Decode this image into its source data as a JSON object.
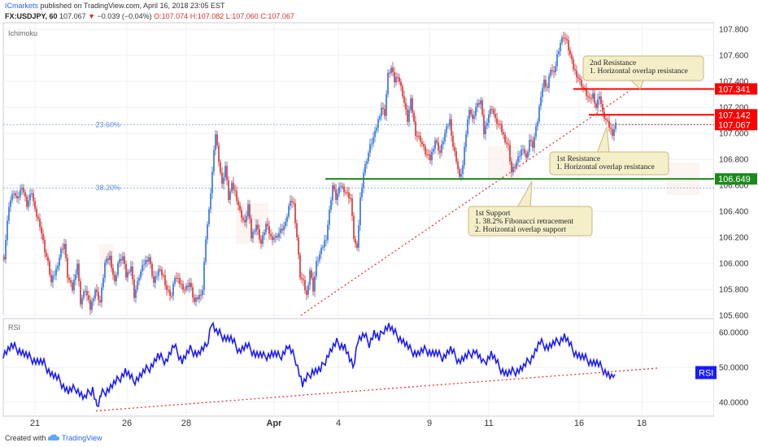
{
  "header": {
    "publisher": "ICmarkets",
    "published_text": "published on TradingView.com, April 16, 2018 23:05 EST",
    "symbol": "FX:USDJPY, 60",
    "last": "107.067",
    "change": "−0.039 (−0.04%)",
    "open": "O:107.074",
    "high": "H:107.082",
    "low": "L:107.060",
    "close": "C:107.067"
  },
  "footer": {
    "created_with": "Created with",
    "brand": "TradingView"
  },
  "colors": {
    "up": "#26a69a",
    "down": "#ef5350",
    "rsi": "#1a1aff",
    "resistance": "#ff0000",
    "support": "#1b8a1b",
    "grid": "#eef0f4"
  },
  "chart_data": [
    {
      "type": "candlestick",
      "indicator_label": "Ichimoku",
      "y_ticks": [
        "105.600",
        "105.800",
        "106.000",
        "106.200",
        "106.400",
        "106.600",
        "106.800",
        "107.000",
        "107.200",
        "107.400",
        "107.600",
        "107.800"
      ],
      "ylim": [
        105.6,
        107.85
      ],
      "x_ticks": [
        "21",
        "26",
        "28",
        "Apr",
        "4",
        "9",
        "11",
        "16",
        "18"
      ],
      "price_labels": [
        {
          "value": 107.341,
          "text": "107.341",
          "color": "#ff0000"
        },
        {
          "value": 107.142,
          "text": "107.142",
          "color": "#ff0000"
        },
        {
          "value": 107.067,
          "text": "107.067",
          "color": "#ff0000"
        },
        {
          "value": 106.649,
          "text": "106.649",
          "color": "#1b8a1b"
        }
      ],
      "fib_levels": [
        {
          "label": "23.60%",
          "value": 107.067
        },
        {
          "label": "38.20%",
          "value": 106.58
        }
      ],
      "annotations": [
        {
          "id": "second-resistance",
          "lines": [
            "2nd Resistance",
            "1. Horizontal overlap resistance"
          ],
          "level": 107.341
        },
        {
          "id": "first-resistance",
          "lines": [
            "1st Resistance",
            "1. Horizontal overlap resistance"
          ],
          "level": 107.142
        },
        {
          "id": "first-support",
          "lines": [
            "1st Support",
            "1. 38.2% Fibonacci retracement",
            "2. Horizontal overlap support"
          ],
          "level": 106.649
        }
      ],
      "path": [
        [
          0,
          106.05
        ],
        [
          6,
          106.45
        ],
        [
          12,
          106.55
        ],
        [
          16,
          106.48
        ],
        [
          22,
          106.6
        ],
        [
          28,
          106.45
        ],
        [
          34,
          106.55
        ],
        [
          38,
          106.4
        ],
        [
          44,
          106.3
        ],
        [
          50,
          106.1
        ],
        [
          54,
          106.0
        ],
        [
          58,
          105.85
        ],
        [
          64,
          105.95
        ],
        [
          70,
          106.1
        ],
        [
          74,
          106.15
        ],
        [
          78,
          105.9
        ],
        [
          84,
          105.8
        ],
        [
          90,
          106.0
        ],
        [
          94,
          105.7
        ],
        [
          100,
          105.8
        ],
        [
          106,
          105.65
        ],
        [
          112,
          105.8
        ],
        [
          118,
          105.7
        ],
        [
          124,
          106.0
        ],
        [
          130,
          106.05
        ],
        [
          136,
          105.85
        ],
        [
          140,
          106.0
        ],
        [
          146,
          106.05
        ],
        [
          150,
          105.9
        ],
        [
          156,
          105.98
        ],
        [
          160,
          105.75
        ],
        [
          166,
          105.9
        ],
        [
          172,
          106.0
        ],
        [
          178,
          106.05
        ],
        [
          184,
          105.85
        ],
        [
          190,
          105.95
        ],
        [
          196,
          105.9
        ],
        [
          200,
          105.8
        ],
        [
          206,
          105.75
        ],
        [
          210,
          105.9
        ],
        [
          216,
          105.85
        ],
        [
          222,
          105.8
        ],
        [
          228,
          105.85
        ],
        [
          234,
          105.7
        ],
        [
          240,
          105.75
        ],
        [
          244,
          105.8
        ],
        [
          248,
          106.2
        ],
        [
          252,
          106.4
        ],
        [
          256,
          106.7
        ],
        [
          260,
          107.0
        ],
        [
          264,
          106.8
        ],
        [
          268,
          106.6
        ],
        [
          272,
          106.75
        ],
        [
          276,
          106.5
        ],
        [
          280,
          106.6
        ],
        [
          284,
          106.55
        ],
        [
          290,
          106.4
        ],
        [
          296,
          106.3
        ],
        [
          300,
          106.45
        ],
        [
          304,
          106.2
        ],
        [
          310,
          106.3
        ],
        [
          316,
          106.15
        ],
        [
          322,
          106.3
        ],
        [
          328,
          106.2
        ],
        [
          334,
          106.2
        ],
        [
          340,
          106.25
        ],
        [
          346,
          106.3
        ],
        [
          352,
          106.5
        ],
        [
          356,
          106.45
        ],
        [
          360,
          106.2
        ],
        [
          364,
          105.9
        ],
        [
          368,
          105.85
        ],
        [
          372,
          105.75
        ],
        [
          376,
          105.95
        ],
        [
          380,
          105.8
        ],
        [
          384,
          106.0
        ],
        [
          390,
          106.1
        ],
        [
          396,
          106.2
        ],
        [
          400,
          106.4
        ],
        [
          404,
          106.6
        ],
        [
          408,
          106.5
        ],
        [
          414,
          106.6
        ],
        [
          420,
          106.55
        ],
        [
          426,
          106.5
        ],
        [
          430,
          106.2
        ],
        [
          434,
          106.1
        ],
        [
          438,
          106.5
        ],
        [
          442,
          106.7
        ],
        [
          446,
          106.8
        ],
        [
          450,
          106.9
        ],
        [
          456,
          107.0
        ],
        [
          460,
          107.1
        ],
        [
          464,
          107.2
        ],
        [
          468,
          107.15
        ],
        [
          472,
          107.45
        ],
        [
          476,
          107.5
        ],
        [
          480,
          107.4
        ],
        [
          484,
          107.45
        ],
        [
          490,
          107.3
        ],
        [
          496,
          107.1
        ],
        [
          500,
          107.25
        ],
        [
          506,
          107.0
        ],
        [
          512,
          106.95
        ],
        [
          518,
          106.85
        ],
        [
          524,
          106.8
        ],
        [
          530,
          106.95
        ],
        [
          536,
          106.85
        ],
        [
          542,
          107.0
        ],
        [
          548,
          107.1
        ],
        [
          552,
          106.9
        ],
        [
          556,
          106.8
        ],
        [
          560,
          106.65
        ],
        [
          564,
          106.75
        ],
        [
          568,
          107.0
        ],
        [
          572,
          107.2
        ],
        [
          576,
          107.1
        ],
        [
          580,
          107.2
        ],
        [
          586,
          107.25
        ],
        [
          590,
          107.0
        ],
        [
          596,
          107.15
        ],
        [
          600,
          107.2
        ],
        [
          604,
          107.1
        ],
        [
          610,
          107.05
        ],
        [
          616,
          106.95
        ],
        [
          620,
          106.9
        ],
        [
          624,
          106.7
        ],
        [
          628,
          106.75
        ],
        [
          632,
          106.8
        ],
        [
          638,
          106.9
        ],
        [
          642,
          106.8
        ],
        [
          646,
          106.95
        ],
        [
          650,
          106.9
        ],
        [
          656,
          107.1
        ],
        [
          660,
          107.3
        ],
        [
          664,
          107.4
        ],
        [
          668,
          107.35
        ],
        [
          672,
          107.5
        ],
        [
          676,
          107.45
        ],
        [
          680,
          107.6
        ],
        [
          684,
          107.7
        ],
        [
          688,
          107.75
        ],
        [
          692,
          107.7
        ],
        [
          696,
          107.6
        ],
        [
          700,
          107.5
        ],
        [
          704,
          107.45
        ],
        [
          708,
          107.4
        ],
        [
          712,
          107.35
        ],
        [
          716,
          107.3
        ],
        [
          720,
          107.25
        ],
        [
          724,
          107.3
        ],
        [
          728,
          107.2
        ],
        [
          732,
          107.3
        ],
        [
          736,
          107.15
        ],
        [
          740,
          107.1
        ],
        [
          744,
          107.05
        ],
        [
          748,
          107.0
        ],
        [
          752,
          107.07
        ]
      ]
    },
    {
      "type": "line",
      "indicator_label": "RSI",
      "badge": "RSI",
      "y_ticks": [
        "40.0000",
        "50.0000",
        "60.0000"
      ],
      "ylim": [
        36,
        64
      ],
      "values": [
        [
          0,
          54
        ],
        [
          10,
          56
        ],
        [
          20,
          55
        ],
        [
          30,
          53
        ],
        [
          40,
          52
        ],
        [
          50,
          51
        ],
        [
          60,
          48
        ],
        [
          70,
          46
        ],
        [
          80,
          43
        ],
        [
          90,
          44
        ],
        [
          100,
          41
        ],
        [
          110,
          44
        ],
        [
          115,
          39
        ],
        [
          120,
          42
        ],
        [
          130,
          44
        ],
        [
          140,
          46
        ],
        [
          150,
          49
        ],
        [
          160,
          46
        ],
        [
          170,
          48
        ],
        [
          180,
          50
        ],
        [
          190,
          53
        ],
        [
          200,
          52
        ],
        [
          210,
          56
        ],
        [
          220,
          52
        ],
        [
          230,
          55
        ],
        [
          240,
          54
        ],
        [
          250,
          56
        ],
        [
          256,
          63
        ],
        [
          262,
          60
        ],
        [
          270,
          59
        ],
        [
          280,
          58
        ],
        [
          290,
          55
        ],
        [
          300,
          56
        ],
        [
          310,
          54
        ],
        [
          320,
          53
        ],
        [
          330,
          54
        ],
        [
          340,
          53
        ],
        [
          350,
          56
        ],
        [
          360,
          52
        ],
        [
          368,
          45
        ],
        [
          374,
          47
        ],
        [
          380,
          49
        ],
        [
          390,
          49
        ],
        [
          400,
          54
        ],
        [
          410,
          57
        ],
        [
          420,
          56
        ],
        [
          426,
          52
        ],
        [
          430,
          50
        ],
        [
          436,
          58
        ],
        [
          444,
          59
        ],
        [
          450,
          57
        ],
        [
          456,
          60
        ],
        [
          462,
          58
        ],
        [
          468,
          61
        ],
        [
          474,
          62
        ],
        [
          480,
          60
        ],
        [
          490,
          58
        ],
        [
          500,
          55
        ],
        [
          510,
          54
        ],
        [
          520,
          55
        ],
        [
          530,
          54
        ],
        [
          540,
          53
        ],
        [
          550,
          55
        ],
        [
          560,
          52
        ],
        [
          570,
          53
        ],
        [
          580,
          55
        ],
        [
          590,
          51
        ],
        [
          600,
          54
        ],
        [
          610,
          50
        ],
        [
          620,
          48
        ],
        [
          630,
          49
        ],
        [
          640,
          50
        ],
        [
          650,
          53
        ],
        [
          660,
          57
        ],
        [
          670,
          56
        ],
        [
          680,
          57
        ],
        [
          690,
          59
        ],
        [
          700,
          55
        ],
        [
          710,
          53
        ],
        [
          720,
          52
        ],
        [
          730,
          51
        ],
        [
          740,
          49
        ],
        [
          748,
          47
        ],
        [
          752,
          48
        ]
      ]
    }
  ]
}
